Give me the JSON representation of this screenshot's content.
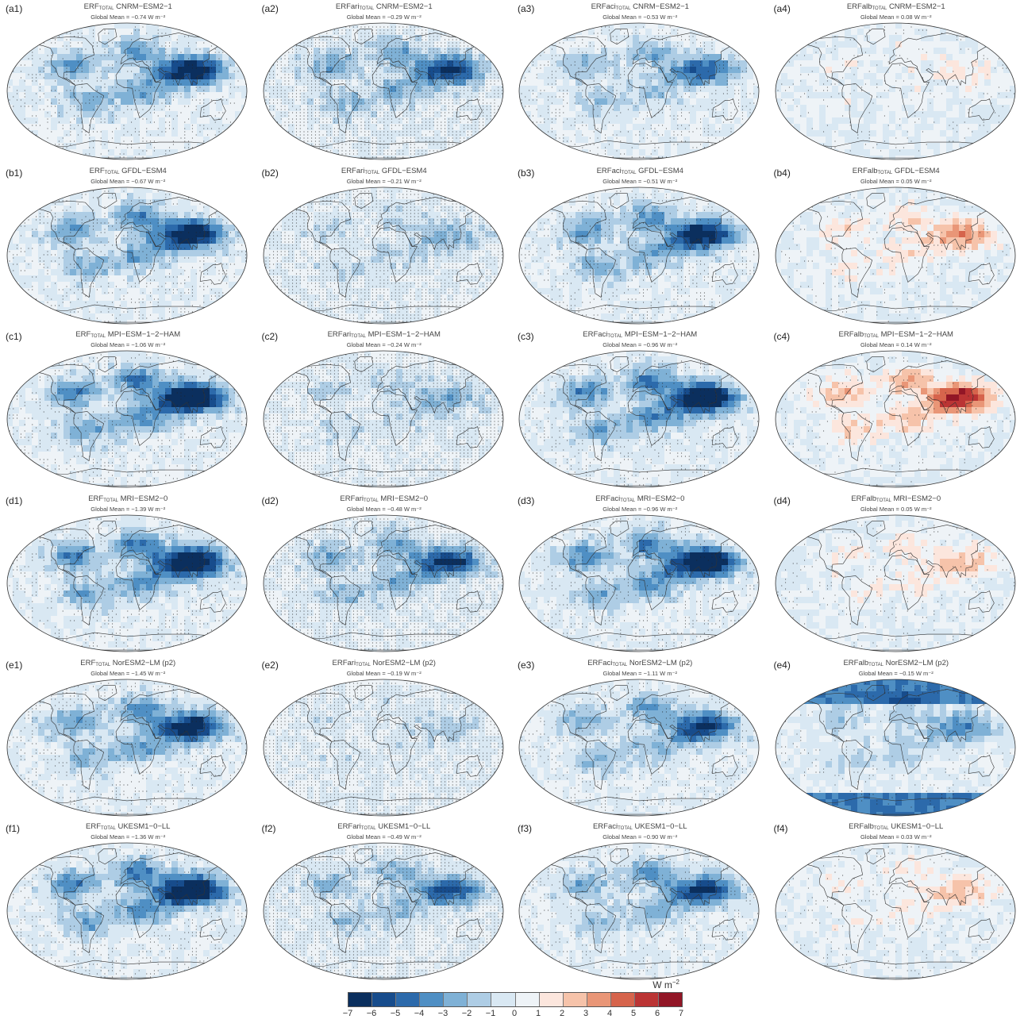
{
  "colorbar": {
    "unit_base": "W m",
    "unit_exp": "−2",
    "ticks": [
      "−7",
      "−6",
      "−5",
      "−4",
      "−3",
      "−2",
      "−1",
      "0",
      "1",
      "2",
      "3",
      "4",
      "5",
      "6",
      "7"
    ],
    "colors": [
      "#0b2f5e",
      "#174c8c",
      "#2c6aab",
      "#4f8fc4",
      "#7fb1d6",
      "#aecde5",
      "#d9e8f3",
      "#eef3f7",
      "#fce6dd",
      "#f6c3aa",
      "#e99677",
      "#d6644c",
      "#bb3434",
      "#921626"
    ]
  },
  "panels": [
    {
      "label": "(a1)",
      "var": "ERF",
      "sub": "TOTAL",
      "model": "CNRM−ESM2−1",
      "mean": "Global Mean = −0.74 W m⁻²",
      "mean_value": -0.74,
      "hot_asia": -6,
      "stipple": "land"
    },
    {
      "label": "(a2)",
      "var": "ERFari",
      "sub": "TOTAL",
      "model": "CNRM−ESM2−1",
      "mean": "Global Mean = −0.29 W m⁻²",
      "mean_value": -0.29,
      "hot_asia": -5,
      "stipple": "all"
    },
    {
      "label": "(a3)",
      "var": "ERFaci",
      "sub": "TOTAL",
      "model": "CNRM−ESM2−1",
      "mean": "Global Mean = −0.53 W m⁻²",
      "mean_value": -0.53,
      "hot_asia": -4,
      "stipple": "land"
    },
    {
      "label": "(a4)",
      "var": "ERFalb",
      "sub": "TOTAL",
      "model": "CNRM−ESM2−1",
      "mean": "Global Mean = 0.08 W m⁻²",
      "mean_value": 0.08,
      "hot_asia": 1,
      "stipple": "sparse"
    },
    {
      "label": "(b1)",
      "var": "ERF",
      "sub": "TOTAL",
      "model": "GFDL−ESM4",
      "mean": "Global Mean = −0.67 W m⁻²",
      "mean_value": -0.67,
      "hot_asia": -6,
      "stipple": "land"
    },
    {
      "label": "(b2)",
      "var": "ERFari",
      "sub": "TOTAL",
      "model": "GFDL−ESM4",
      "mean": "Global Mean = −0.21 W m⁻²",
      "mean_value": -0.21,
      "hot_asia": -2,
      "stipple": "all"
    },
    {
      "label": "(b3)",
      "var": "ERFaci",
      "sub": "TOTAL",
      "model": "GFDL−ESM4",
      "mean": "Global Mean = −0.51 W m⁻²",
      "mean_value": -0.51,
      "hot_asia": -6,
      "stipple": "land"
    },
    {
      "label": "(b4)",
      "var": "ERFalb",
      "sub": "TOTAL",
      "model": "GFDL−ESM4",
      "mean": "Global Mean = 0.05 W m⁻²",
      "mean_value": 0.05,
      "hot_asia": 3,
      "stipple": "sparse"
    },
    {
      "label": "(c1)",
      "var": "ERF",
      "sub": "TOTAL",
      "model": "MPI−ESM−1−2−HAM",
      "mean": "Global Mean = −1.06 W m⁻²",
      "mean_value": -1.06,
      "hot_asia": -7,
      "stipple": "land"
    },
    {
      "label": "(c2)",
      "var": "ERFari",
      "sub": "TOTAL",
      "model": "MPI−ESM−1−2−HAM",
      "mean": "Global Mean = −0.24 W m⁻²",
      "mean_value": -0.24,
      "hot_asia": -2,
      "stipple": "all"
    },
    {
      "label": "(c3)",
      "var": "ERFaci",
      "sub": "TOTAL",
      "model": "MPI−ESM−1−2−HAM",
      "mean": "Global Mean = −0.96 W m⁻²",
      "mean_value": -0.96,
      "hot_asia": -7,
      "stipple": "land"
    },
    {
      "label": "(c4)",
      "var": "ERFalb",
      "sub": "TOTAL",
      "model": "MPI−ESM−1−2−HAM",
      "mean": "Global Mean = 0.14 W m⁻²",
      "mean_value": 0.14,
      "hot_asia": 5,
      "stipple": "sparse"
    },
    {
      "label": "(d1)",
      "var": "ERF",
      "sub": "TOTAL",
      "model": "MRI−ESM2−0",
      "mean": "Global Mean = −1.39 W m⁻²",
      "mean_value": -1.39,
      "hot_asia": -7,
      "stipple": "land"
    },
    {
      "label": "(d2)",
      "var": "ERFari",
      "sub": "TOTAL",
      "model": "MRI−ESM2−0",
      "mean": "Global Mean = −0.48 W m⁻²",
      "mean_value": -0.48,
      "hot_asia": -5,
      "stipple": "all"
    },
    {
      "label": "(d3)",
      "var": "ERFaci",
      "sub": "TOTAL",
      "model": "MRI−ESM2−0",
      "mean": "Global Mean = −0.96 W m⁻²",
      "mean_value": -0.96,
      "hot_asia": -7,
      "stipple": "land"
    },
    {
      "label": "(d4)",
      "var": "ERFalb",
      "sub": "TOTAL",
      "model": "MRI−ESM2−0",
      "mean": "Global Mean = 0.05 W m⁻²",
      "mean_value": 0.05,
      "hot_asia": 2,
      "stipple": "sparse"
    },
    {
      "label": "(e1)",
      "var": "ERF",
      "sub": "TOTAL",
      "model": "NorESM2−LM (p2)",
      "mean": "Global Mean = −1.45 W m⁻²",
      "mean_value": -1.45,
      "hot_asia": -6,
      "stipple": "land"
    },
    {
      "label": "(e2)",
      "var": "ERFari",
      "sub": "TOTAL",
      "model": "NorESM2−LM (p2)",
      "mean": "Global Mean = −0.19 W m⁻²",
      "mean_value": -0.19,
      "hot_asia": -1,
      "stipple": "all"
    },
    {
      "label": "(e3)",
      "var": "ERFaci",
      "sub": "TOTAL",
      "model": "NorESM2−LM (p2)",
      "mean": "Global Mean = −1.11 W m⁻²",
      "mean_value": -1.11,
      "hot_asia": -5,
      "stipple": "land"
    },
    {
      "label": "(e4)",
      "var": "ERFalb",
      "sub": "TOTAL",
      "model": "NorESM2−LM (p2)",
      "mean": "Global Mean = −0.15 W m⁻²",
      "mean_value": -0.15,
      "hot_asia": -3,
      "stipple": "sparse"
    },
    {
      "label": "(f1)",
      "var": "ERF",
      "sub": "TOTAL",
      "model": "UKESM1−0−LL",
      "mean": "Global Mean = −1.36 W m⁻²",
      "mean_value": -1.36,
      "hot_asia": -7,
      "stipple": "land"
    },
    {
      "label": "(f2)",
      "var": "ERFari",
      "sub": "TOTAL",
      "model": "UKESM1−0−LL",
      "mean": "Global Mean = −0.49 W m⁻²",
      "mean_value": -0.49,
      "hot_asia": -4,
      "stipple": "all"
    },
    {
      "label": "(f3)",
      "var": "ERFaci",
      "sub": "TOTAL",
      "model": "UKESM1−0−LL",
      "mean": "Global Mean = −0.90 W m⁻²",
      "mean_value": -0.9,
      "hot_asia": -5,
      "stipple": "land"
    },
    {
      "label": "(f4)",
      "var": "ERFalb",
      "sub": "TOTAL",
      "model": "UKESM1−0−LL",
      "mean": "Global Mean = 0.03 W m⁻²",
      "mean_value": 0.03,
      "hot_asia": 2,
      "stipple": "sparse"
    }
  ]
}
